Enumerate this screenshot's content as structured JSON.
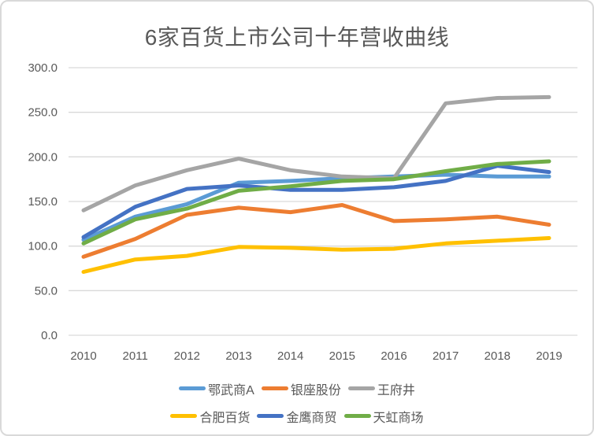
{
  "chart_data": {
    "type": "line",
    "title": "6家百货上市公司十年营收曲线",
    "categories": [
      "2010",
      "2011",
      "2012",
      "2013",
      "2014",
      "2015",
      "2016",
      "2017",
      "2018",
      "2019"
    ],
    "series": [
      {
        "name": "鄂武商A",
        "color": "#5B9BD5",
        "values": [
          107,
          133,
          147,
          171,
          173,
          176,
          178,
          180,
          178,
          178
        ]
      },
      {
        "name": "银座股份",
        "color": "#ED7D31",
        "values": [
          88,
          108,
          135,
          143,
          138,
          146,
          128,
          130,
          133,
          124
        ]
      },
      {
        "name": "王府井",
        "color": "#A5A5A5",
        "values": [
          140,
          168,
          185,
          198,
          185,
          178,
          176,
          260,
          266,
          267
        ]
      },
      {
        "name": "合肥百货",
        "color": "#FFC000",
        "values": [
          71,
          85,
          89,
          99,
          98,
          96,
          97,
          103,
          106,
          109
        ]
      },
      {
        "name": "金鹰商贸",
        "color": "#4472C4",
        "values": [
          110,
          144,
          164,
          168,
          163,
          163,
          166,
          173,
          190,
          183
        ]
      },
      {
        "name": "天虹商场",
        "color": "#70AD47",
        "values": [
          103,
          130,
          142,
          162,
          167,
          173,
          175,
          184,
          192,
          195
        ]
      }
    ],
    "ylim": [
      0,
      300
    ],
    "y_tick_step": 50,
    "y_tick_labels": [
      "0.0",
      "50.0",
      "100.0",
      "150.0",
      "200.0",
      "250.0",
      "300.0"
    ],
    "grid": true,
    "legend_position": "bottom",
    "legend_columns": 3,
    "colors": {
      "text": "#595959",
      "gridline": "#d9d9d9",
      "background": "#ffffff",
      "frame_border": "#d9d9d9"
    }
  }
}
